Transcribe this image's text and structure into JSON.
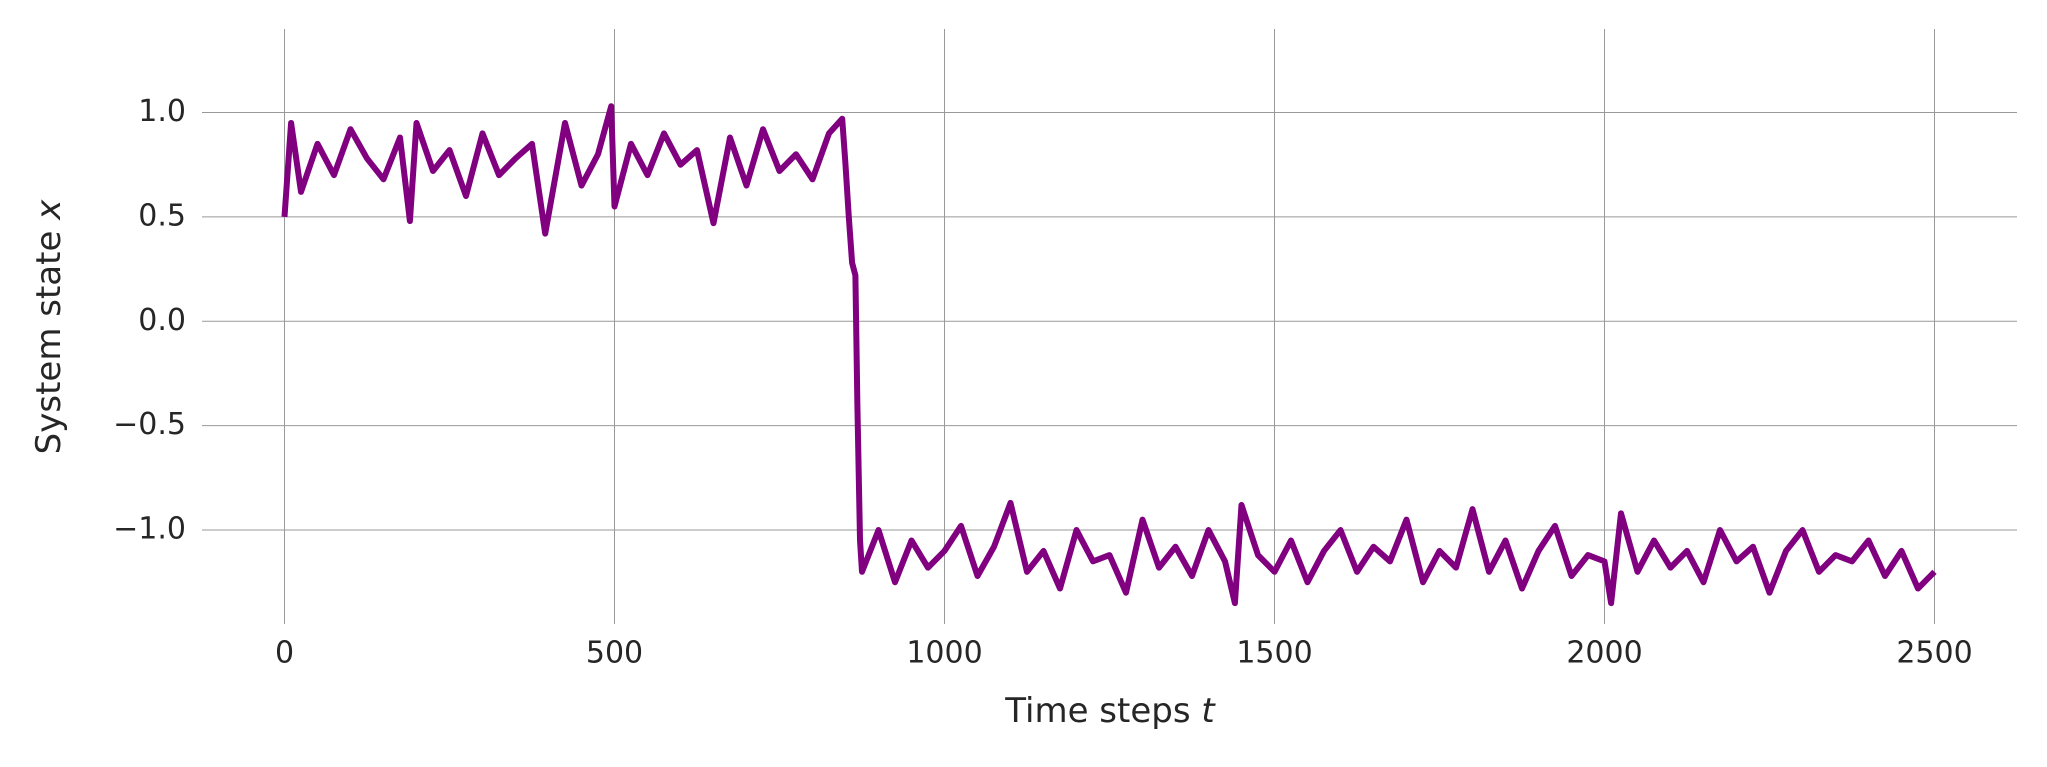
{
  "chart_data": {
    "type": "line",
    "xlabel": {
      "text": "Time steps",
      "var": "t"
    },
    "ylabel": {
      "text": "System state",
      "var": "x"
    },
    "x": [
      0,
      10,
      25,
      50,
      75,
      100,
      125,
      150,
      175,
      190,
      200,
      225,
      250,
      275,
      300,
      325,
      350,
      375,
      395,
      425,
      450,
      475,
      495,
      500,
      525,
      550,
      575,
      600,
      625,
      650,
      675,
      700,
      725,
      750,
      775,
      800,
      825,
      845,
      850,
      855,
      860,
      865,
      868,
      872,
      875,
      900,
      925,
      950,
      975,
      1000,
      1025,
      1050,
      1075,
      1100,
      1125,
      1150,
      1175,
      1200,
      1225,
      1250,
      1275,
      1300,
      1325,
      1350,
      1375,
      1400,
      1425,
      1440,
      1450,
      1475,
      1500,
      1525,
      1550,
      1575,
      1600,
      1625,
      1650,
      1675,
      1700,
      1725,
      1750,
      1775,
      1800,
      1825,
      1850,
      1875,
      1900,
      1925,
      1950,
      1975,
      2000,
      2010,
      2025,
      2050,
      2075,
      2100,
      2125,
      2150,
      2175,
      2200,
      2225,
      2250,
      2275,
      2300,
      2325,
      2350,
      2375,
      2400,
      2425,
      2450,
      2475,
      2500
    ],
    "series": [
      {
        "color": "#800080",
        "values": [
          0.5,
          0.95,
          0.62,
          0.85,
          0.7,
          0.92,
          0.78,
          0.68,
          0.88,
          0.48,
          0.95,
          0.72,
          0.82,
          0.6,
          0.9,
          0.7,
          0.78,
          0.85,
          0.42,
          0.95,
          0.65,
          0.8,
          1.03,
          0.55,
          0.85,
          0.7,
          0.9,
          0.75,
          0.82,
          0.47,
          0.88,
          0.65,
          0.92,
          0.72,
          0.8,
          0.68,
          0.9,
          0.97,
          0.75,
          0.5,
          0.28,
          0.22,
          -0.4,
          -1.05,
          -1.2,
          -1.0,
          -1.25,
          -1.05,
          -1.18,
          -1.1,
          -0.98,
          -1.22,
          -1.08,
          -0.87,
          -1.2,
          -1.1,
          -1.28,
          -1.0,
          -1.15,
          -1.12,
          -1.3,
          -0.95,
          -1.18,
          -1.08,
          -1.22,
          -1.0,
          -1.15,
          -1.35,
          -0.88,
          -1.12,
          -1.2,
          -1.05,
          -1.25,
          -1.1,
          -1.0,
          -1.2,
          -1.08,
          -1.15,
          -0.95,
          -1.25,
          -1.1,
          -1.18,
          -0.9,
          -1.2,
          -1.05,
          -1.28,
          -1.1,
          -0.98,
          -1.22,
          -1.12,
          -1.15,
          -1.35,
          -0.92,
          -1.2,
          -1.05,
          -1.18,
          -1.1,
          -1.25,
          -1.0,
          -1.15,
          -1.08,
          -1.3,
          -1.1,
          -1.0,
          -1.2,
          -1.12,
          -1.15,
          -1.05,
          -1.22,
          -1.1,
          -1.28,
          -1.2
        ]
      }
    ],
    "xlim": [
      -125,
      2625
    ],
    "xticks": [
      0,
      500,
      1000,
      1500,
      2000,
      2500
    ],
    "ylim": [
      -1.45,
      1.4
    ],
    "yticks": [
      {
        "value": -1,
        "label": "−1.0"
      },
      {
        "value": -0.5,
        "label": "−0.5"
      },
      {
        "value": 0,
        "label": "0.0"
      },
      0.5,
      {
        "value": 1,
        "label": "1.0"
      }
    ],
    "grid": true
  }
}
